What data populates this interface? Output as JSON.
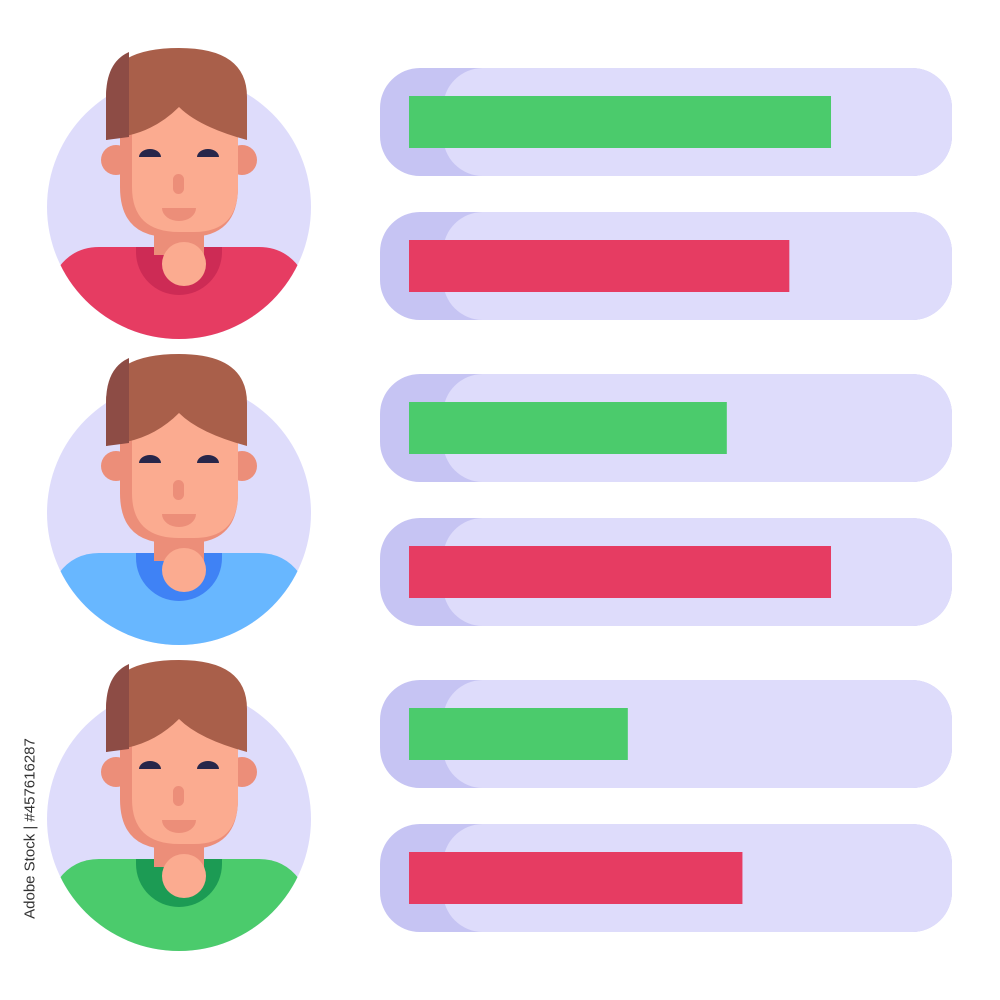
{
  "colors": {
    "circle_bg": "#dedcfb",
    "track_light": "#dedcfb",
    "track_dark": "#c6c4f3",
    "positive": "#4bcb6c",
    "negative": "#e63c62",
    "hair": "#a95f4a",
    "hair_shadow": "#8d4c45",
    "skin": "#fbab90",
    "skin_shadow": "#ec8e79",
    "eyes": "#27264a"
  },
  "people": [
    {
      "shirt": "#e63c62",
      "collar": "#cd2b55",
      "bars": [
        {
          "kind": "positive",
          "value": 0.81
        },
        {
          "kind": "negative",
          "value": 0.73
        }
      ]
    },
    {
      "shirt": "#68b7ff",
      "collar": "#3f82f5",
      "bars": [
        {
          "kind": "positive",
          "value": 0.61
        },
        {
          "kind": "negative",
          "value": 0.81
        }
      ]
    },
    {
      "shirt": "#4bcb6c",
      "collar": "#1c9b54",
      "bars": [
        {
          "kind": "positive",
          "value": 0.42
        },
        {
          "kind": "negative",
          "value": 0.64
        }
      ]
    }
  ],
  "watermark": {
    "brand": "Adobe Stock",
    "id": "#457616287",
    "vertical": "Adobe Stock | #457616287"
  }
}
